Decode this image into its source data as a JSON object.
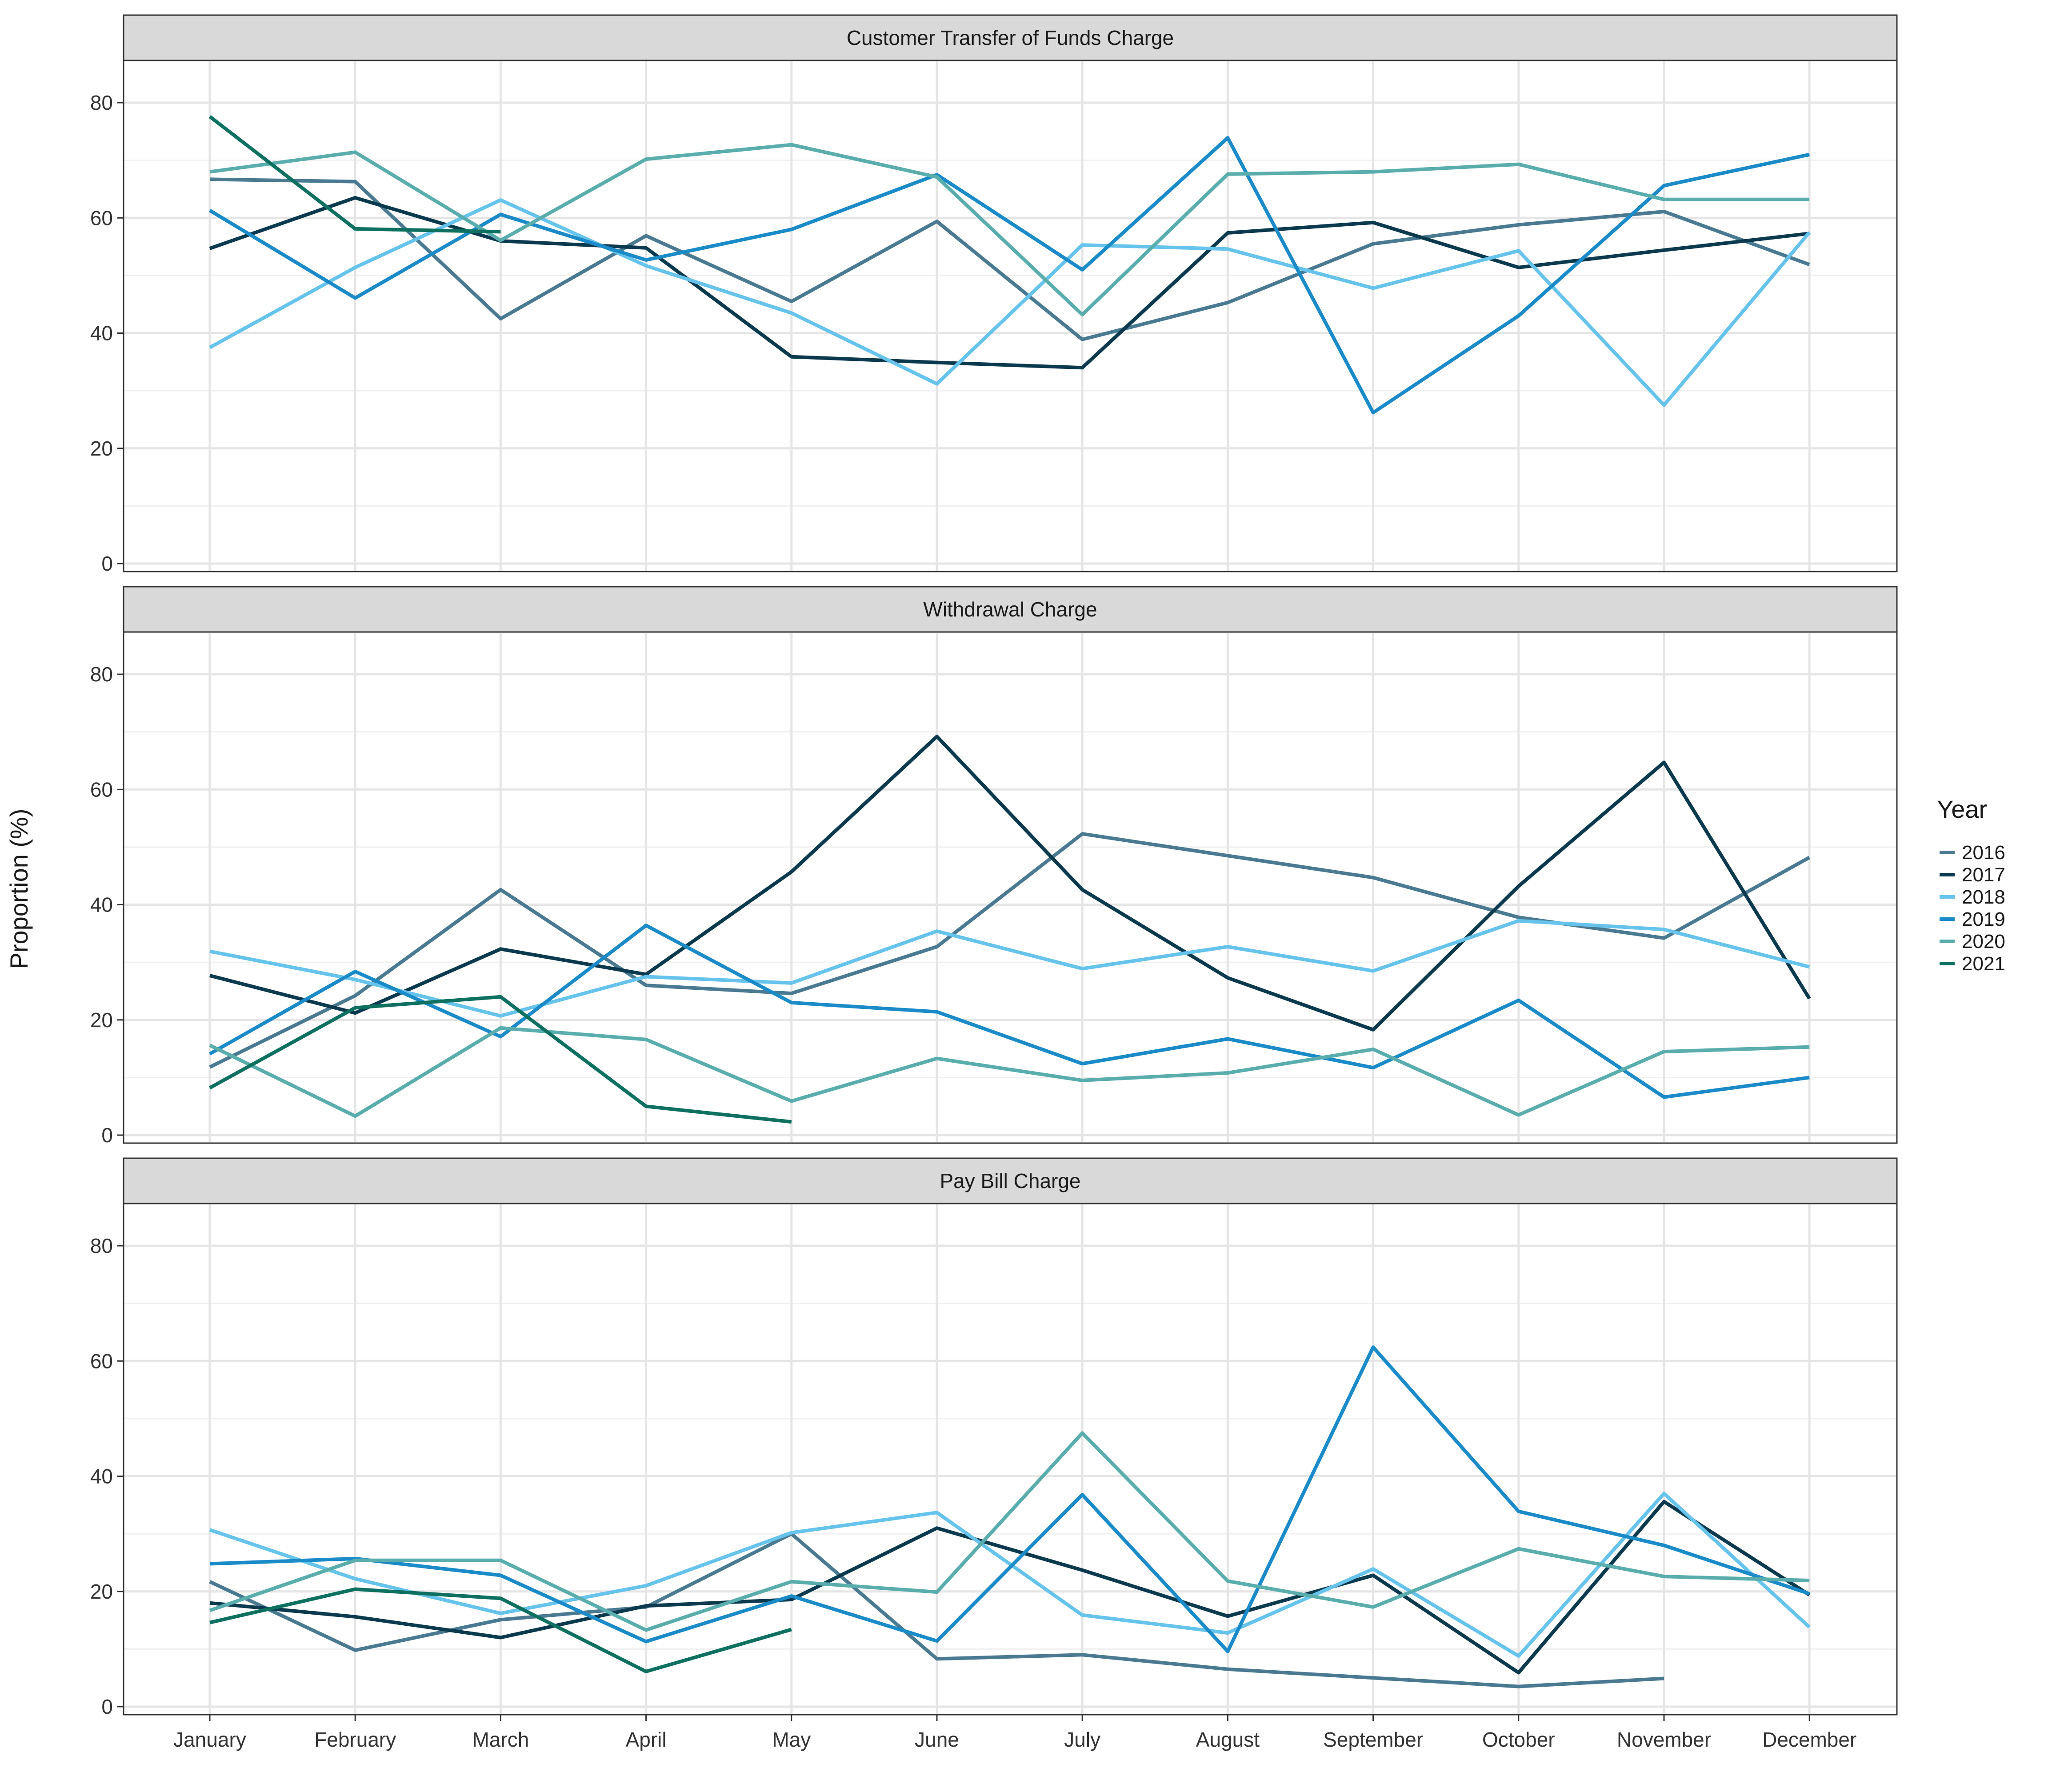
{
  "chart_data": {
    "type": "line",
    "ylabel": "Proportion (%)",
    "xlabel": "",
    "ylim": [
      0,
      84
    ],
    "y_ticks": [
      0,
      20,
      40,
      60,
      80
    ],
    "grid": true,
    "legend_position": "right",
    "legend_title": "Year",
    "categories": [
      "January",
      "February",
      "March",
      "April",
      "May",
      "June",
      "July",
      "August",
      "September",
      "October",
      "November",
      "December"
    ],
    "series_styles": [
      {
        "name": "2016",
        "color": "#4a7a92"
      },
      {
        "name": "2017",
        "color": "#0b3a4f"
      },
      {
        "name": "2018",
        "color": "#66c3ec"
      },
      {
        "name": "2019",
        "color": "#1a8bc8"
      },
      {
        "name": "2020",
        "color": "#5aadad"
      },
      {
        "name": "2021",
        "color": "#0d7060"
      }
    ],
    "panels": [
      {
        "title": "Customer Transfer of Funds Charge",
        "series": [
          {
            "name": "2016",
            "values": [
              66.7,
              66.3,
              42.5,
              56.9,
              45.5,
              59.4,
              38.9,
              45.3,
              55.5,
              58.8,
              61.1,
              51.9
            ]
          },
          {
            "name": "2017",
            "values": [
              54.7,
              63.5,
              56.0,
              54.8,
              35.9,
              34.9,
              34.0,
              57.4,
              59.2,
              51.4,
              54.4,
              57.3
            ]
          },
          {
            "name": "2018",
            "values": [
              37.5,
              51.4,
              63.1,
              51.7,
              43.5,
              31.2,
              55.3,
              54.6,
              47.8,
              54.3,
              27.5,
              57.5
            ]
          },
          {
            "name": "2019",
            "values": [
              61.3,
              46.1,
              60.6,
              52.7,
              58.0,
              67.5,
              51.0,
              73.9,
              26.2,
              43.0,
              65.6,
              71.0
            ]
          },
          {
            "name": "2020",
            "values": [
              68.0,
              71.4,
              56.1,
              70.2,
              72.7,
              67.1,
              43.2,
              67.6,
              68.0,
              69.3,
              63.2,
              63.2
            ]
          },
          {
            "name": "2021",
            "values": [
              77.6,
              58.1,
              57.6,
              null,
              null,
              null,
              null,
              null,
              null,
              null,
              null,
              null
            ]
          }
        ]
      },
      {
        "title": "Withdrawal Charge",
        "series": [
          {
            "name": "2016",
            "values": [
              11.8,
              24.2,
              42.6,
              26.0,
              24.6,
              32.7,
              52.3,
              48.5,
              44.7,
              37.8,
              34.2,
              48.2
            ]
          },
          {
            "name": "2017",
            "values": [
              27.7,
              21.2,
              32.3,
              27.9,
              45.7,
              69.2,
              42.6,
              27.3,
              18.3,
              43.2,
              64.7,
              23.7
            ]
          },
          {
            "name": "2018",
            "values": [
              31.9,
              27.0,
              20.7,
              27.5,
              26.4,
              35.4,
              28.9,
              32.7,
              28.5,
              37.2,
              35.7,
              29.2
            ]
          },
          {
            "name": "2019",
            "values": [
              14.1,
              28.4,
              17.1,
              36.4,
              23.0,
              21.4,
              12.4,
              16.7,
              11.7,
              23.4,
              6.6,
              10.0
            ]
          },
          {
            "name": "2020",
            "values": [
              15.6,
              3.3,
              18.6,
              16.6,
              5.9,
              13.3,
              9.5,
              10.8,
              14.9,
              3.5,
              14.5,
              15.3
            ]
          },
          {
            "name": "2021",
            "values": [
              8.2,
              22.1,
              24.0,
              5.0,
              2.3,
              null,
              null,
              null,
              null,
              null,
              null,
              null
            ]
          }
        ]
      },
      {
        "title": "Pay Bill Charge",
        "series": [
          {
            "name": "2016",
            "values": [
              21.7,
              9.8,
              15.1,
              17.3,
              30.0,
              8.3,
              9.0,
              6.5,
              5.0,
              3.5,
              4.9,
              null
            ]
          },
          {
            "name": "2017",
            "values": [
              18.0,
              15.6,
              12.0,
              17.5,
              18.6,
              31.0,
              23.7,
              15.7,
              22.8,
              5.9,
              35.6,
              19.4
            ]
          },
          {
            "name": "2018",
            "values": [
              30.7,
              22.2,
              16.2,
              21.0,
              30.2,
              33.7,
              15.9,
              12.8,
              23.9,
              8.8,
              37.0,
              13.8
            ]
          },
          {
            "name": "2019",
            "values": [
              24.8,
              25.7,
              22.8,
              11.3,
              19.2,
              11.4,
              36.8,
              9.6,
              62.4,
              33.9,
              28.0,
              19.6
            ]
          },
          {
            "name": "2020",
            "values": [
              16.7,
              25.4,
              25.4,
              13.3,
              21.7,
              19.9,
              47.5,
              21.8,
              17.3,
              27.4,
              22.6,
              21.9
            ]
          },
          {
            "name": "2021",
            "values": [
              14.6,
              20.4,
              18.8,
              6.1,
              13.4,
              null,
              null,
              null,
              null,
              null,
              null,
              null
            ]
          }
        ]
      }
    ]
  }
}
